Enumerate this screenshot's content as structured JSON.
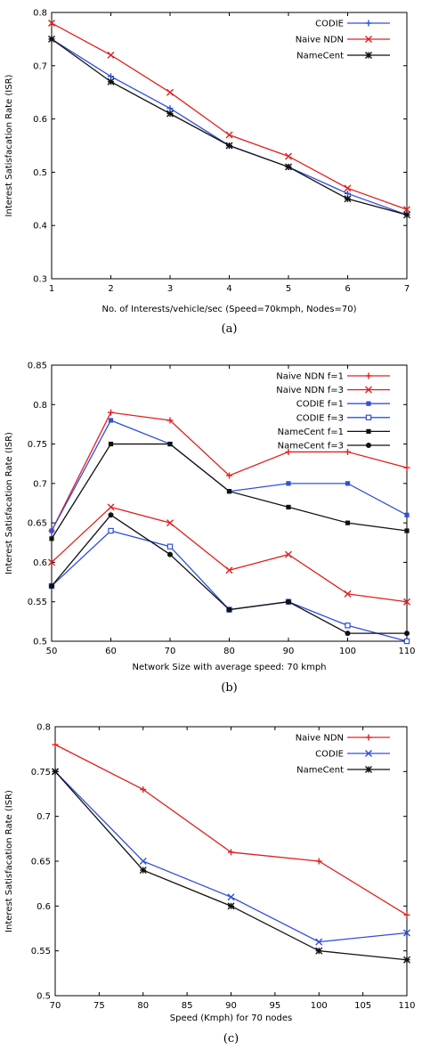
{
  "chart_data": [
    {
      "type": "line",
      "caption": "(a)",
      "xlabel": "No. of Interests/vehicle/sec (Speed=70kmph, Nodes=70)",
      "ylabel": "Interest Satisfacation Rate (ISR)",
      "x": [
        1,
        2,
        3,
        4,
        5,
        6,
        7
      ],
      "xlim": [
        1,
        7
      ],
      "ylim": [
        0.3,
        0.8
      ],
      "xticks": [
        "1",
        "2",
        "3",
        "4",
        "5",
        "6",
        "7"
      ],
      "yticks": [
        "0.3",
        "0.4",
        "0.5",
        "0.6",
        "0.7",
        "0.8"
      ],
      "grid": false,
      "legend_position": "top-right",
      "series": [
        {
          "name": "CODIE",
          "color": "#3050d8",
          "marker": "plus",
          "values": [
            0.75,
            0.68,
            0.62,
            0.55,
            0.51,
            0.46,
            0.42
          ]
        },
        {
          "name": "Naive NDN",
          "color": "#e02020",
          "marker": "x",
          "values": [
            0.78,
            0.72,
            0.65,
            0.57,
            0.53,
            0.47,
            0.43
          ]
        },
        {
          "name": "NameCent",
          "color": "#111111",
          "marker": "star",
          "values": [
            0.75,
            0.67,
            0.61,
            0.55,
            0.51,
            0.45,
            0.42
          ]
        }
      ]
    },
    {
      "type": "line",
      "caption": "(b)",
      "xlabel": "Network Size with average speed: 70 kmph",
      "ylabel": "Interest Satisfacation Rate (ISR)",
      "x": [
        50,
        60,
        70,
        80,
        90,
        100,
        110
      ],
      "xlim": [
        50,
        110
      ],
      "ylim": [
        0.5,
        0.85
      ],
      "xticks": [
        "50",
        "60",
        "70",
        "80",
        "90",
        "100",
        "110"
      ],
      "yticks": [
        "0.5",
        "0.55",
        "0.6",
        "0.65",
        "0.7",
        "0.75",
        "0.8",
        "0.85"
      ],
      "grid": false,
      "legend_position": "top-right",
      "series": [
        {
          "name": "Naive NDN f=1",
          "color": "#e02020",
          "marker": "plus",
          "values": [
            0.64,
            0.79,
            0.78,
            0.71,
            0.74,
            0.74,
            0.72
          ]
        },
        {
          "name": "Naive NDN f=3",
          "color": "#e02020",
          "marker": "x",
          "values": [
            0.6,
            0.67,
            0.65,
            0.59,
            0.61,
            0.56,
            0.55
          ]
        },
        {
          "name": "CODIE f=1",
          "color": "#3050d8",
          "marker": "square",
          "values": [
            0.64,
            0.78,
            0.75,
            0.69,
            0.7,
            0.7,
            0.66
          ]
        },
        {
          "name": "CODIE f=3",
          "color": "#3050d8",
          "marker": "open-square",
          "values": [
            0.57,
            0.64,
            0.62,
            0.54,
            0.55,
            0.52,
            0.5
          ]
        },
        {
          "name": "NameCent f=1",
          "color": "#111111",
          "marker": "square",
          "values": [
            0.63,
            0.75,
            0.75,
            0.69,
            0.67,
            0.65,
            0.64
          ]
        },
        {
          "name": "NameCent f=3",
          "color": "#111111",
          "marker": "circle",
          "values": [
            0.57,
            0.66,
            0.61,
            0.54,
            0.55,
            0.51,
            0.51
          ]
        }
      ]
    },
    {
      "type": "line",
      "caption": "(c)",
      "xlabel": "Speed (Kmph) for 70 nodes",
      "ylabel": "Interest Satisfacation Rate (ISR)",
      "x": [
        70,
        80,
        90,
        100,
        110
      ],
      "xlim": [
        70,
        110
      ],
      "ylim": [
        0.5,
        0.8
      ],
      "xticks": [
        "70",
        "75",
        "80",
        "85",
        "90",
        "95",
        "100",
        "105",
        "110"
      ],
      "yticks": [
        "0.5",
        "0.55",
        "0.6",
        "0.65",
        "0.7",
        "0.75",
        "0.8"
      ],
      "grid": false,
      "legend_position": "top-right",
      "series": [
        {
          "name": "Naive NDN",
          "color": "#e02020",
          "marker": "plus",
          "values": [
            0.78,
            0.73,
            0.66,
            0.65,
            0.59
          ]
        },
        {
          "name": "CODIE",
          "color": "#3050d8",
          "marker": "x",
          "values": [
            0.75,
            0.65,
            0.61,
            0.56,
            0.57
          ]
        },
        {
          "name": "NameCent",
          "color": "#111111",
          "marker": "star",
          "values": [
            0.75,
            0.64,
            0.6,
            0.55,
            0.54
          ]
        }
      ]
    }
  ]
}
